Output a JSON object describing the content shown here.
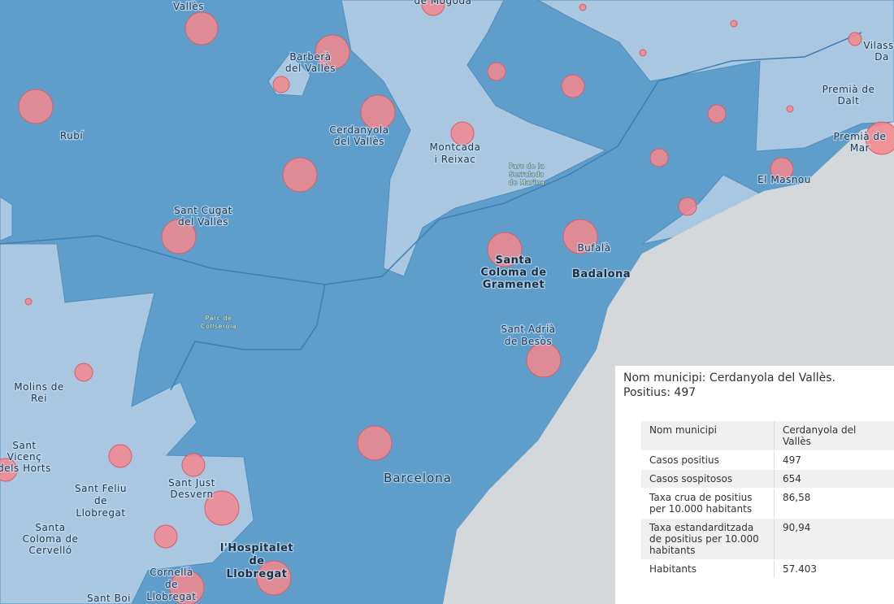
{
  "places": [
    [
      "Vallès"
    ],
    [
      "Barberà",
      "del Vallès"
    ],
    [
      "Rubí"
    ],
    [
      "Cerdanyola",
      "del Vallès"
    ],
    [
      "Montcada",
      "i Reixac"
    ],
    [
      "Parc de la",
      "Serralada",
      "de Marina"
    ],
    [
      "Sant Cugat",
      "del Vallès"
    ],
    [
      "Santa",
      "Coloma de",
      "Gramenet"
    ],
    [
      "Bufalà"
    ],
    [
      "Badalona"
    ],
    [
      "Premià de",
      "Dalt"
    ],
    [
      "Premià de",
      "Mar"
    ],
    [
      "El Masnou"
    ],
    [
      "Vilassa",
      "Da"
    ],
    [
      "de Mogoda"
    ],
    [
      "Parc de",
      "Collserola"
    ],
    [
      "Sant Adrià",
      "de Besòs"
    ],
    [
      "Molins de",
      "Rei"
    ],
    [
      "Sant",
      "Vicenç",
      "dels Horts"
    ],
    [
      "Sant Feliu",
      "de",
      "Llobregat"
    ],
    [
      "Sant Just",
      "Desvern"
    ],
    [
      "Barcelona"
    ],
    [
      "Santa",
      "Coloma de",
      "Cervelló"
    ],
    [
      "l'Hospitalet",
      "de",
      "Llobregat"
    ],
    [
      "Cornellà",
      "de",
      "Llobregat"
    ],
    [
      "Sant Boi"
    ]
  ],
  "popup": {
    "title": "Nom municipi: Cerdanyola del Vallès. Positius: 497",
    "rows": [
      [
        "Nom municipi",
        "Cerdanyola del Vallès"
      ],
      [
        "Casos positius",
        "497"
      ],
      [
        "Casos sospitosos",
        "654"
      ],
      [
        "Taxa crua de positius per 10.000 habitants",
        "86,58"
      ],
      [
        "Taxa estandarditzada de positius per 10.000 habitants",
        "90,94"
      ],
      [
        "Habitants",
        "57.403"
      ]
    ]
  }
}
